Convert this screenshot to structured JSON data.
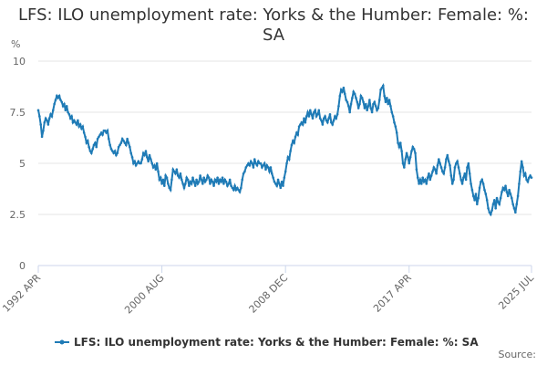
{
  "chart_data": {
    "type": "line",
    "title": "LFS: ILO unemployment rate: Yorks & the Humber: Female: %: SA",
    "y_label": "%",
    "source": "Source:",
    "categories": [
      "1992 APR",
      null,
      null,
      null,
      null,
      null,
      null,
      null,
      null,
      null,
      null,
      null,
      null,
      null,
      null,
      null,
      null,
      null,
      null,
      null,
      null,
      null,
      null,
      null,
      null,
      null,
      null,
      null,
      null,
      null,
      null,
      null,
      null,
      null,
      null,
      null,
      null,
      null,
      null,
      null,
      null,
      null,
      null,
      null,
      null,
      null,
      null,
      null,
      null,
      null,
      null,
      null,
      null,
      null,
      null,
      null,
      null,
      null,
      null,
      null,
      null,
      null,
      null,
      null,
      null,
      null,
      null,
      null,
      null,
      null,
      null,
      null,
      null,
      null,
      null,
      null,
      null,
      null,
      null,
      null,
      null,
      null,
      null,
      null,
      null,
      null,
      null,
      null,
      null,
      null,
      null,
      null,
      null,
      null,
      null,
      null,
      null,
      null,
      null,
      null,
      "2000 AUG",
      null,
      null,
      null,
      null,
      null,
      null,
      null,
      null,
      null,
      null,
      null,
      null,
      null,
      null,
      null,
      null,
      null,
      null,
      null,
      null,
      null,
      null,
      null,
      null,
      null,
      null,
      null,
      null,
      null,
      null,
      null,
      null,
      null,
      null,
      null,
      null,
      null,
      null,
      null,
      null,
      null,
      null,
      null,
      null,
      null,
      null,
      null,
      null,
      null,
      null,
      null,
      null,
      null,
      null,
      null,
      null,
      null,
      null,
      null,
      null,
      null,
      null,
      null,
      null,
      null,
      null,
      null,
      null,
      null,
      null,
      null,
      null,
      null,
      null,
      null,
      null,
      null,
      null,
      null,
      null,
      null,
      null,
      null,
      null,
      null,
      null,
      null,
      null,
      null,
      null,
      null,
      null,
      null,
      null,
      null,
      null,
      null,
      null,
      null,
      "2008 DEC",
      null,
      null,
      null,
      null,
      null,
      null,
      null,
      null,
      null,
      null,
      null,
      null,
      null,
      null,
      null,
      null,
      null,
      null,
      null,
      null,
      null,
      null,
      null,
      null,
      null,
      null,
      null,
      null,
      null,
      null,
      null,
      null,
      null,
      null,
      null,
      null,
      null,
      null,
      null,
      null,
      null,
      null,
      null,
      null,
      null,
      null,
      null,
      null,
      null,
      null,
      null,
      null,
      null,
      null,
      null,
      null,
      null,
      null,
      null,
      null,
      null,
      null,
      null,
      null,
      null,
      null,
      null,
      null,
      null,
      null,
      null,
      null,
      null,
      null,
      null,
      null,
      null,
      null,
      null,
      null,
      null,
      null,
      null,
      null,
      null,
      null,
      null,
      null,
      null,
      null,
      null,
      null,
      null,
      null,
      null,
      null,
      null,
      null,
      null,
      "2017 APR",
      null,
      null,
      null,
      null,
      null,
      null,
      null,
      null,
      null,
      null,
      null,
      null,
      null,
      null,
      null,
      null,
      null,
      null,
      null,
      null,
      null,
      null,
      null,
      null,
      null,
      null,
      null,
      null,
      null,
      null,
      null,
      null,
      null,
      null,
      null,
      null,
      null,
      null,
      null,
      null,
      null,
      null,
      null,
      null,
      null,
      null,
      null,
      null,
      null,
      null,
      null,
      null,
      null,
      null,
      null,
      null,
      null,
      null,
      null,
      null,
      null,
      null,
      null,
      null,
      null,
      null,
      null,
      null,
      null,
      null,
      null,
      null,
      null,
      null,
      null,
      null,
      null,
      null,
      null,
      null,
      null,
      null,
      null,
      null,
      null,
      null,
      null,
      null,
      null,
      null,
      null,
      null,
      null,
      null,
      null,
      null,
      null,
      null,
      "2025 JUL"
    ],
    "series": [
      {
        "name": "LFS: ILO unemployment rate: Yorks & the Humber: Female: %: SA",
        "color": "#1f7bb6",
        "values": [
          7.6,
          7.3,
          6.9,
          6.3,
          6.6,
          7.0,
          7.2,
          7.1,
          6.9,
          7.2,
          7.4,
          7.3,
          7.6,
          7.9,
          8.1,
          8.3,
          8.2,
          8.3,
          8.1,
          8.0,
          7.8,
          7.9,
          7.6,
          7.8,
          7.5,
          7.4,
          7.2,
          7.3,
          7.0,
          7.1,
          7.0,
          6.9,
          7.1,
          6.8,
          6.9,
          6.7,
          6.8,
          6.5,
          6.3,
          6.0,
          6.1,
          5.8,
          5.6,
          5.5,
          5.7,
          5.9,
          6.0,
          5.8,
          6.2,
          6.3,
          6.4,
          6.5,
          6.4,
          6.6,
          6.6,
          6.5,
          6.6,
          6.2,
          5.9,
          5.7,
          5.6,
          5.5,
          5.6,
          5.4,
          5.5,
          5.8,
          5.9,
          6.0,
          6.2,
          6.1,
          6.0,
          5.9,
          6.2,
          6.0,
          5.8,
          5.5,
          5.3,
          5.0,
          5.1,
          4.9,
          5.0,
          5.1,
          5.0,
          5.0,
          5.2,
          5.5,
          5.4,
          5.6,
          5.3,
          5.1,
          5.4,
          5.2,
          5.0,
          4.8,
          4.9,
          4.7,
          5.0,
          4.6,
          4.2,
          4.3,
          4.0,
          4.2,
          3.9,
          4.4,
          4.3,
          4.0,
          3.8,
          3.7,
          4.2,
          4.7,
          4.6,
          4.5,
          4.7,
          4.4,
          4.3,
          4.5,
          4.2,
          4.0,
          3.8,
          4.0,
          4.3,
          4.2,
          3.9,
          4.1,
          4.0,
          4.3,
          4.1,
          3.9,
          4.2,
          4.0,
          4.1,
          4.4,
          4.2,
          4.0,
          4.3,
          4.1,
          4.2,
          4.4,
          4.3,
          4.0,
          4.2,
          4.1,
          3.9,
          4.2,
          4.1,
          4.3,
          4.0,
          4.2,
          4.1,
          4.3,
          4.0,
          4.2,
          4.1,
          3.9,
          4.0,
          4.2,
          3.9,
          3.8,
          3.7,
          3.9,
          3.7,
          3.8,
          3.7,
          3.6,
          3.8,
          4.2,
          4.5,
          4.6,
          4.8,
          4.9,
          5.0,
          4.9,
          5.1,
          5.0,
          4.8,
          5.2,
          5.0,
          4.9,
          5.1,
          5.0,
          5.0,
          4.8,
          4.9,
          5.0,
          4.7,
          4.9,
          4.8,
          4.6,
          4.8,
          4.5,
          4.3,
          4.1,
          4.0,
          3.9,
          4.2,
          4.0,
          3.8,
          4.1,
          3.9,
          4.3,
          4.6,
          5.0,
          5.3,
          5.2,
          5.6,
          5.9,
          6.1,
          6.0,
          6.3,
          6.5,
          6.4,
          6.8,
          6.9,
          7.0,
          6.9,
          7.2,
          7.0,
          7.3,
          7.5,
          7.3,
          7.6,
          7.4,
          7.2,
          7.5,
          7.6,
          7.3,
          7.4,
          7.6,
          7.2,
          7.1,
          6.9,
          7.2,
          7.3,
          7.1,
          7.0,
          7.2,
          7.4,
          7.0,
          6.9,
          7.1,
          7.3,
          7.2,
          7.4,
          7.8,
          8.3,
          8.6,
          8.5,
          8.7,
          8.4,
          8.1,
          8.0,
          7.8,
          7.5,
          7.9,
          8.2,
          8.5,
          8.4,
          8.2,
          8.0,
          7.7,
          7.9,
          8.3,
          8.2,
          8.0,
          7.7,
          7.9,
          7.6,
          7.8,
          8.1,
          7.7,
          7.5,
          7.9,
          8.0,
          7.8,
          7.6,
          7.7,
          8.1,
          8.6,
          8.7,
          8.8,
          8.3,
          8.0,
          8.2,
          7.9,
          8.1,
          7.8,
          7.5,
          7.3,
          7.0,
          6.8,
          6.5,
          6.0,
          5.8,
          6.0,
          5.6,
          5.0,
          4.8,
          5.2,
          5.5,
          5.3,
          5.0,
          5.3,
          5.6,
          5.8,
          5.7,
          5.5,
          4.7,
          4.3,
          4.0,
          4.2,
          4.0,
          4.3,
          4.1,
          4.2,
          4.0,
          4.3,
          4.5,
          4.2,
          4.4,
          4.6,
          4.8,
          4.7,
          4.5,
          4.9,
          5.2,
          5.0,
          4.8,
          4.6,
          4.5,
          4.8,
          5.2,
          5.4,
          5.1,
          4.9,
          4.4,
          4.0,
          4.2,
          4.8,
          5.0,
          5.1,
          4.8,
          4.5,
          4.2,
          4.0,
          4.3,
          4.5,
          4.2,
          4.8,
          5.0,
          4.5,
          4.0,
          3.7,
          3.4,
          3.2,
          3.5,
          3.0,
          3.3,
          3.8,
          4.1,
          4.2,
          4.0,
          3.7,
          3.5,
          3.2,
          2.8,
          2.6,
          2.5,
          2.7,
          3.0,
          3.2,
          2.8,
          3.3,
          3.1,
          3.0,
          3.3,
          3.6,
          3.8,
          3.7,
          3.9,
          3.6,
          3.4,
          3.7,
          3.5,
          3.3,
          3.0,
          2.8,
          2.6,
          3.0,
          3.4,
          4.0,
          4.6,
          5.1,
          4.8,
          4.4,
          4.5,
          4.2,
          4.1,
          4.3,
          4.4,
          4.3
        ]
      }
    ],
    "ylim": [
      0,
      10
    ],
    "yticks": [
      0,
      2.5,
      5,
      7.5,
      10
    ],
    "grid": true
  }
}
